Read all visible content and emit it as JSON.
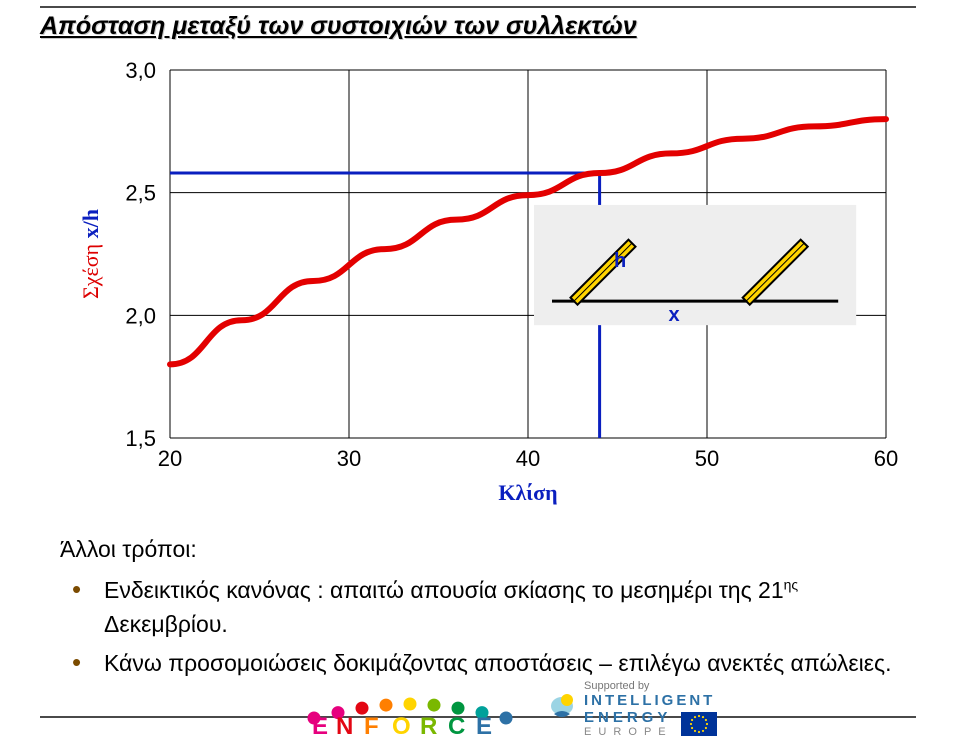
{
  "title": "Απόσταση μεταξύ των συστοιχιών των συλλεκτών",
  "chart": {
    "type": "line",
    "xlim": [
      20,
      60
    ],
    "ylim": [
      1.5,
      3.0
    ],
    "xticks": [
      20,
      30,
      40,
      50,
      60
    ],
    "yticks": [
      1.5,
      2.0,
      2.5,
      3.0
    ],
    "xtick_labels": [
      "20",
      "30",
      "40",
      "50",
      "60"
    ],
    "ytick_labels": [
      "1,5",
      "2,0",
      "2,5",
      "3,0"
    ],
    "ylabel_plain": "Σχέση ",
    "ylabel_bold": "x/h",
    "xlabel": "Κλίση",
    "series": {
      "color": "#e30000",
      "width": 6,
      "x": [
        20,
        24,
        28,
        32,
        36,
        40,
        44,
        48,
        52,
        56,
        60
      ],
      "y": [
        1.8,
        1.98,
        2.14,
        2.27,
        2.39,
        2.49,
        2.58,
        2.66,
        2.72,
        2.77,
        2.8
      ]
    },
    "marker_lines": {
      "color": "#0a1fbf",
      "width": 3,
      "x": 44,
      "y": 2.58
    },
    "grid_color": "#000000",
    "grid_width": 1,
    "tick_font_size": 22,
    "tick_color": "#000000",
    "label_font_size": 22,
    "inset": {
      "bg": "#eeeeee",
      "h_label": "h",
      "x_label": "x",
      "label_color": "#0a1fbf",
      "panel_fill": "#ffd400",
      "panel_stroke": "#000000",
      "ground_stroke": "#000000"
    }
  },
  "bullets": {
    "lead": "Άλλοι τρόποι:",
    "items": [
      "Ενδεικτικός  κανόνας : απαιτώ απουσία σκίασης το μεσημέρι της 21ης Δεκεμβρίου.",
      "Κάνω προσομοιώσεις δοκιμάζοντας αποστάσεις – επιλέγω ανεκτές απώλειες."
    ]
  },
  "footer": {
    "enforce_colors": [
      "#e6007e",
      "#e6007e",
      "#e30613",
      "#ff7f00",
      "#ffd400",
      "#7ab800",
      "#009640",
      "#00a19a",
      "#2d71a6"
    ],
    "enforce_text": "ENFORCE",
    "iee_supported": "Supported by",
    "iee_line1": "INTELLIGENT",
    "iee_line2": "ENERGY",
    "iee_line3": "E U R O P E",
    "eu_flag_bg": "#003399",
    "eu_flag_star": "#ffd400"
  }
}
